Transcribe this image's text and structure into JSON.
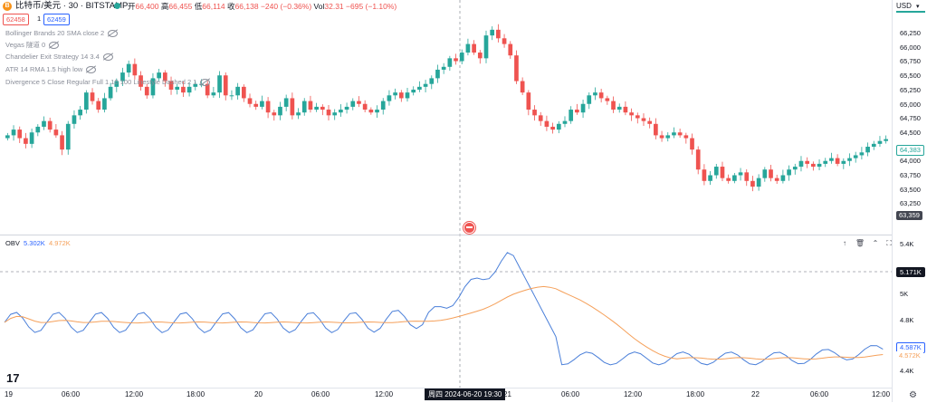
{
  "symbol": {
    "icon": "bitcoin-icon",
    "icon_glyph": "B",
    "title": "比特币/美元 · 30 · BITSTAMP",
    "status_color": "#26a69a"
  },
  "ohlc": {
    "open_label": "开",
    "open": "66,400",
    "high_label": "高",
    "high": "66,455",
    "low_label": "低",
    "low": "66,114",
    "close_label": "收",
    "close": "66,138",
    "change": "−240 (−0.36%)",
    "vol_label": "Vol",
    "vol": "32.31",
    "vol_change": "−695 (−1.10%)"
  },
  "prices": {
    "bid": "62458",
    "spread": "1",
    "ask": "62459"
  },
  "indicators": [
    "Bollinger Brands 20 SMA close 2",
    "Vegas 隧道 0",
    "Chandelier Exit Strategy 14 3.4",
    "ATR 14 RMA 1.5 high low",
    "Divergence 5 Close Regular Full 1 10 100 Linestyle Dashed 2 1"
  ],
  "price_axis": {
    "currency": "USD",
    "ticks": [
      "66,250",
      "66,000",
      "65,750",
      "65,500",
      "65,250",
      "65,000",
      "64,750",
      "64,500",
      "64,250",
      "64,000",
      "63,750",
      "63,500",
      "63,250"
    ],
    "last_price": "64,383",
    "low_price": "63,359"
  },
  "obv": {
    "name": "OBV",
    "value1": "5.302K",
    "value2": "4.972K",
    "ticks": [
      "5.4K",
      "5K",
      "4.8K",
      "4.6K",
      "4.4K"
    ],
    "current": "5.171K",
    "last_blue": "4.587K",
    "last_orange": "4.572K",
    "line_color": "#4a7fd9",
    "ma_color": "#f5a05a"
  },
  "time_axis": {
    "ticks": [
      "19",
      "06:00",
      "12:00",
      "18:00",
      "20",
      "06:00",
      "12:00",
      "21",
      "06:00",
      "12:00",
      "18:00",
      "22",
      "06:00",
      "12:00"
    ],
    "crosshair": "周四 2024-06-20   19:30"
  },
  "colors": {
    "up": "#26a69a",
    "down": "#ef5350"
  },
  "chart_data": {
    "type": "candlestick",
    "close_series_approx": [
      64450,
      64550,
      64400,
      64300,
      64500,
      64600,
      64700,
      64550,
      64450,
      64200,
      64650,
      64800,
      64900,
      65200,
      65050,
      64900,
      65100,
      65300,
      65400,
      65550,
      65700,
      65500,
      65300,
      65150,
      65450,
      65550,
      65400,
      65250,
      65300,
      65200,
      65300,
      65350,
      65350,
      65150,
      65200,
      65500,
      65150,
      65150,
      65300,
      65100,
      65000,
      64950,
      65050,
      64850,
      64800,
      64950,
      65100,
      64800,
      64850,
      65050,
      64900,
      64950,
      64900,
      64800,
      64850,
      64900,
      64950,
      65050,
      65000,
      64900,
      64850,
      64900,
      65050,
      65150,
      65200,
      65100,
      65200,
      65250,
      65300,
      65350,
      65450,
      65600,
      65650,
      65800,
      65750,
      65900,
      66050,
      65900,
      65800,
      66200,
      66300,
      66150,
      66050,
      65850,
      65400,
      65200,
      64900,
      64800,
      64700,
      64600,
      64550,
      64650,
      64700,
      64900,
      64850,
      65000,
      65150,
      65200,
      65100,
      65050,
      64900,
      64950,
      64850,
      64800,
      64750,
      64700,
      64650,
      64450,
      64400,
      64450,
      64500,
      64450,
      64400,
      64200,
      63850,
      63650,
      63750,
      63900,
      63700,
      63650,
      63750,
      63800,
      63650,
      63550,
      63700,
      63850,
      63700,
      63650,
      63750,
      63850,
      63900,
      64000,
      63950,
      63900,
      63950,
      64000,
      64050,
      63950,
      64000,
      64050,
      64100,
      64150,
      64250,
      64300,
      64350,
      64383
    ]
  }
}
